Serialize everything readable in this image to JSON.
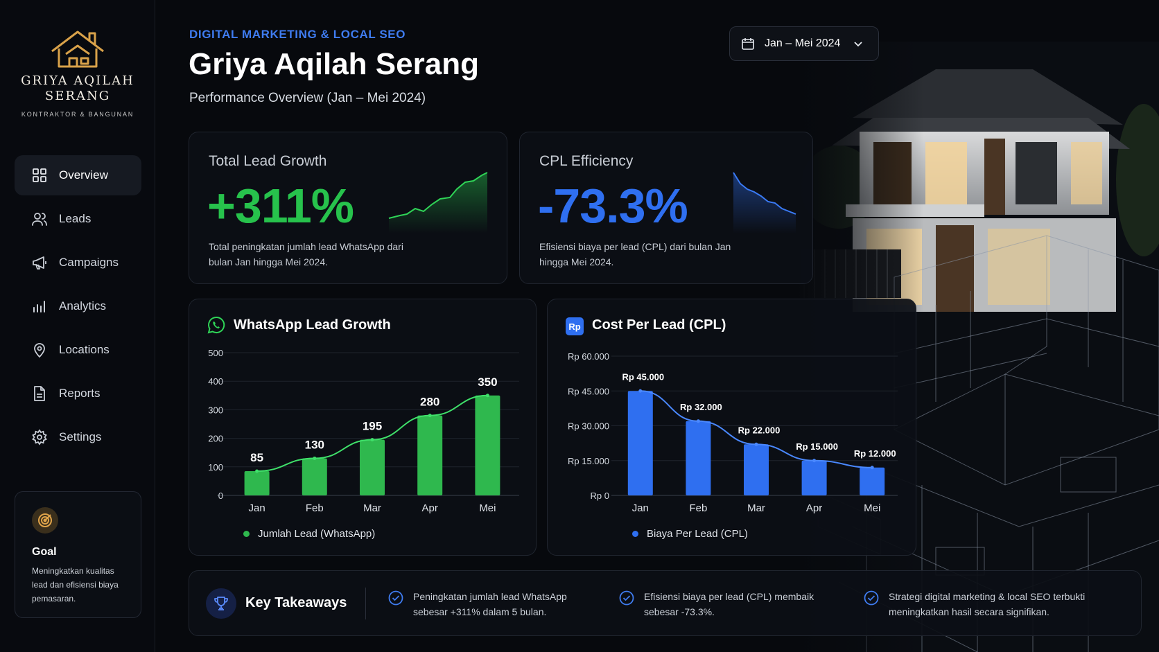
{
  "brand": {
    "name_line1": "GRIYA AQILAH",
    "name_line2": "SERANG",
    "tagline": "KONTRAKTOR & BANGUNAN"
  },
  "nav": {
    "items": [
      {
        "label": "Overview",
        "icon": "grid-icon",
        "active": true
      },
      {
        "label": "Leads",
        "icon": "users-icon"
      },
      {
        "label": "Campaigns",
        "icon": "megaphone-icon"
      },
      {
        "label": "Analytics",
        "icon": "bar-chart-icon"
      },
      {
        "label": "Locations",
        "icon": "map-pin-icon"
      },
      {
        "label": "Reports",
        "icon": "document-icon"
      },
      {
        "label": "Settings",
        "icon": "gear-icon"
      }
    ]
  },
  "goal": {
    "title": "Goal",
    "text": "Meningkatkan kualitas lead dan efisiensi biaya pemasaran."
  },
  "header": {
    "eyebrow": "DIGITAL MARKETING & LOCAL SEO",
    "title": "Griya Aqilah Serang",
    "subtitle": "Performance Overview (Jan – Mei 2024)",
    "date_range": "Jan – Mei 2024"
  },
  "kpis": {
    "lead_growth": {
      "title": "Total Lead Growth",
      "value": "+311%",
      "description": "Total peningkatan jumlah lead WhatsApp dari bulan Jan hingga Mei 2024.",
      "color": "#27c24c"
    },
    "cpl": {
      "title": "CPL Efficiency",
      "value": "-73.3%",
      "description": "Efisiensi biaya per lead (CPL) dari bulan Jan hingga Mei 2024.",
      "color": "#2f6ff0"
    }
  },
  "chart_data": [
    {
      "type": "bar",
      "title": "WhatsApp Lead Growth",
      "categories": [
        "Jan",
        "Feb",
        "Mar",
        "Apr",
        "Mei"
      ],
      "series": [
        {
          "name": "Jumlah Lead (WhatsApp)",
          "values": [
            85,
            130,
            195,
            280,
            350
          ]
        }
      ],
      "data_labels": [
        "85",
        "130",
        "195",
        "280",
        "350"
      ],
      "yticks": [
        "0",
        "100",
        "200",
        "300",
        "400",
        "500"
      ],
      "ylim": [
        0,
        500
      ],
      "trend_line": true,
      "grid": true,
      "legend": "bottom",
      "color": "#2fb84e"
    },
    {
      "type": "bar",
      "title": "Cost Per Lead (CPL)",
      "categories": [
        "Jan",
        "Feb",
        "Mar",
        "Apr",
        "Mei"
      ],
      "series": [
        {
          "name": "Biaya Per Lead (CPL)",
          "values": [
            45000,
            32000,
            22000,
            15000,
            12000
          ]
        }
      ],
      "data_labels": [
        "Rp 45.000",
        "Rp 32.000",
        "Rp 22.000",
        "Rp 15.000",
        "Rp 12.000"
      ],
      "yticks": [
        "Rp  0",
        "Rp 15.000",
        "Rp 30.000",
        "Rp 45.000",
        "Rp 60.000"
      ],
      "ylim": [
        0,
        60000
      ],
      "trend_line": true,
      "grid": true,
      "legend": "bottom",
      "color": "#2f6ff0"
    }
  ],
  "takeaways": {
    "title": "Key Takeaways",
    "items": [
      "Peningkatan jumlah lead WhatsApp sebesar +311% dalam 5 bulan.",
      "Efisiensi biaya per lead (CPL) membaik sebesar -73.3%.",
      "Strategi digital marketing & local SEO terbukti meningkatkan hasil secara signifikan."
    ]
  }
}
